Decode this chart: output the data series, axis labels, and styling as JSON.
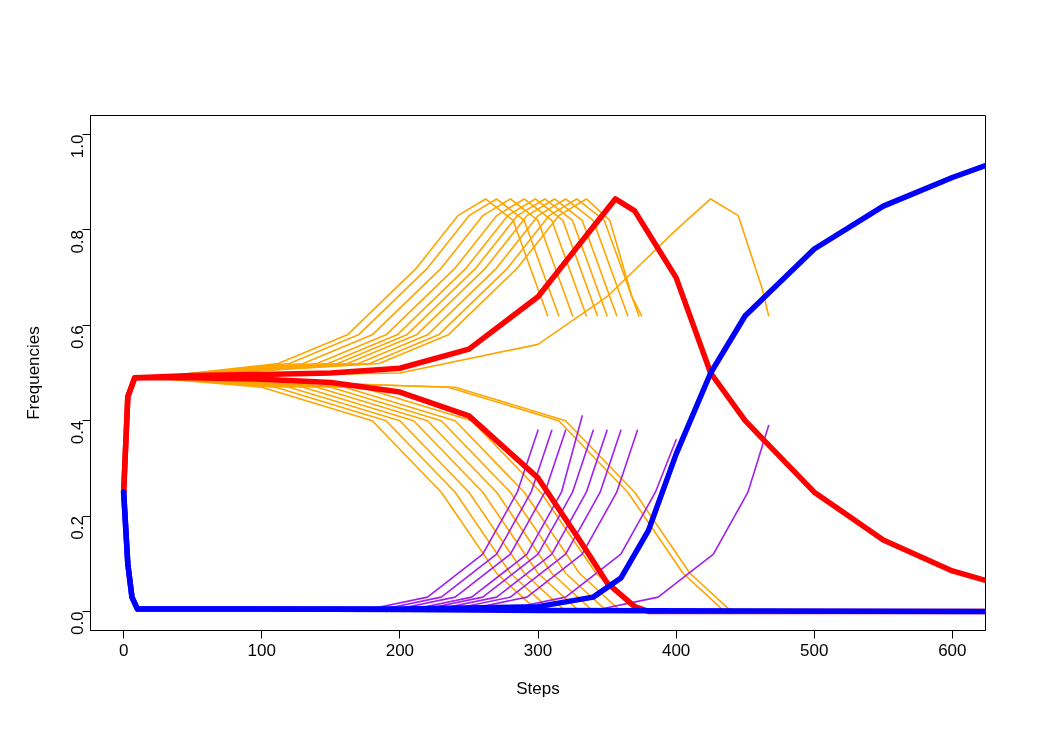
{
  "chart_data": {
    "type": "line",
    "xlabel": "Steps",
    "ylabel": "Frequencies",
    "xlim": [
      -24,
      624
    ],
    "ylim": [
      -0.04,
      1.04
    ],
    "xticks": [
      0,
      100,
      200,
      300,
      400,
      500,
      600
    ],
    "yticks": [
      {
        "value": 0,
        "label": "0.0"
      },
      {
        "value": 0.2,
        "label": "0.2"
      },
      {
        "value": 0.4,
        "label": "0.4"
      },
      {
        "value": 0.6,
        "label": "0.6"
      },
      {
        "value": 0.8,
        "label": "0.8"
      },
      {
        "value": 1,
        "label": "1.0"
      }
    ],
    "marker": "none",
    "line_style": "solid",
    "series": [
      {
        "color": "#ffa500",
        "x": [
          20,
          112,
          162,
          212,
          242,
          262,
          282,
          302,
          307
        ],
        "values": [
          0.49,
          0.52,
          0.58,
          0.72,
          0.83,
          0.865,
          0.82,
          0.66,
          0.62
        ]
      },
      {
        "color": "#ffa500",
        "x": [
          20,
          120,
          170,
          220,
          250,
          270,
          290,
          310,
          315
        ],
        "values": [
          0.49,
          0.52,
          0.58,
          0.72,
          0.83,
          0.865,
          0.82,
          0.66,
          0.62
        ]
      },
      {
        "color": "#ffa500",
        "x": [
          20,
          130,
          180,
          230,
          260,
          280,
          300,
          320,
          325
        ],
        "values": [
          0.49,
          0.52,
          0.58,
          0.72,
          0.83,
          0.865,
          0.82,
          0.66,
          0.62
        ]
      },
      {
        "color": "#ffa500",
        "x": [
          20,
          140,
          190,
          240,
          270,
          290,
          310,
          330,
          335
        ],
        "values": [
          0.49,
          0.52,
          0.58,
          0.72,
          0.83,
          0.865,
          0.82,
          0.66,
          0.62
        ]
      },
      {
        "color": "#ffa500",
        "x": [
          20,
          148,
          198,
          248,
          278,
          298,
          318,
          338,
          343
        ],
        "values": [
          0.49,
          0.52,
          0.58,
          0.72,
          0.83,
          0.865,
          0.82,
          0.66,
          0.62
        ]
      },
      {
        "color": "#ffa500",
        "x": [
          20,
          155,
          205,
          255,
          285,
          305,
          325,
          345,
          350
        ],
        "values": [
          0.49,
          0.52,
          0.58,
          0.72,
          0.83,
          0.865,
          0.82,
          0.66,
          0.62
        ]
      },
      {
        "color": "#ffa500",
        "x": [
          20,
          162,
          212,
          262,
          292,
          312,
          332,
          352,
          357
        ],
        "values": [
          0.49,
          0.52,
          0.58,
          0.72,
          0.83,
          0.865,
          0.82,
          0.66,
          0.62
        ]
      },
      {
        "color": "#ffa500",
        "x": [
          20,
          170,
          220,
          270,
          300,
          320,
          340,
          360,
          365
        ],
        "values": [
          0.49,
          0.52,
          0.58,
          0.72,
          0.83,
          0.865,
          0.82,
          0.66,
          0.62
        ]
      },
      {
        "color": "#ffa500",
        "x": [
          20,
          178,
          228,
          278,
          308,
          328,
          348,
          368,
          373
        ],
        "values": [
          0.49,
          0.52,
          0.58,
          0.72,
          0.83,
          0.865,
          0.82,
          0.66,
          0.62
        ]
      },
      {
        "color": "#ffa500",
        "x": [
          20,
          185,
          235,
          285,
          315,
          335,
          352,
          368,
          375
        ],
        "values": [
          0.49,
          0.52,
          0.58,
          0.72,
          0.83,
          0.865,
          0.82,
          0.66,
          0.62
        ]
      },
      {
        "color": "#ffa500",
        "x": [
          20,
          200,
          300,
          350,
          400,
          425,
          445,
          462,
          467
        ],
        "values": [
          0.49,
          0.5,
          0.56,
          0.66,
          0.8,
          0.865,
          0.83,
          0.68,
          0.62
        ]
      },
      {
        "color": "#ffa500",
        "x": [
          20,
          100,
          180,
          230,
          270,
          300
        ],
        "values": [
          0.49,
          0.47,
          0.4,
          0.25,
          0.08,
          0.0
        ]
      },
      {
        "color": "#ffa500",
        "x": [
          20,
          110,
          190,
          240,
          280,
          310
        ],
        "values": [
          0.49,
          0.47,
          0.4,
          0.25,
          0.08,
          0.0
        ]
      },
      {
        "color": "#ffa500",
        "x": [
          20,
          120,
          200,
          250,
          290,
          320
        ],
        "values": [
          0.49,
          0.47,
          0.4,
          0.25,
          0.08,
          0.0
        ]
      },
      {
        "color": "#ffa500",
        "x": [
          20,
          130,
          210,
          260,
          300,
          330
        ],
        "values": [
          0.49,
          0.47,
          0.4,
          0.25,
          0.08,
          0.0
        ]
      },
      {
        "color": "#ffa500",
        "x": [
          20,
          140,
          220,
          270,
          310,
          340
        ],
        "values": [
          0.49,
          0.47,
          0.4,
          0.25,
          0.08,
          0.0
        ]
      },
      {
        "color": "#ffa500",
        "x": [
          20,
          150,
          230,
          280,
          320,
          350
        ],
        "values": [
          0.49,
          0.47,
          0.4,
          0.25,
          0.08,
          0.0
        ]
      },
      {
        "color": "#ffa500",
        "x": [
          20,
          160,
          240,
          290,
          330,
          360
        ],
        "values": [
          0.49,
          0.47,
          0.4,
          0.25,
          0.08,
          0.0
        ]
      },
      {
        "color": "#ffa500",
        "x": [
          20,
          172,
          252,
          302,
          342,
          372
        ],
        "values": [
          0.49,
          0.47,
          0.4,
          0.25,
          0.08,
          0.0
        ]
      },
      {
        "color": "#ffa500",
        "x": [
          20,
          235,
          315,
          365,
          405,
          435
        ],
        "values": [
          0.49,
          0.47,
          0.4,
          0.25,
          0.08,
          0.0
        ]
      },
      {
        "color": "#ffa500",
        "x": [
          20,
          240,
          320,
          370,
          410,
          440
        ],
        "values": [
          0.49,
          0.47,
          0.4,
          0.25,
          0.08,
          0.0
        ]
      },
      {
        "color": "#a020f0",
        "x": [
          170,
          220,
          260,
          285,
          300
        ],
        "values": [
          0.0,
          0.03,
          0.12,
          0.25,
          0.38
        ]
      },
      {
        "color": "#a020f0",
        "x": [
          180,
          230,
          270,
          295,
          310
        ],
        "values": [
          0.0,
          0.03,
          0.12,
          0.25,
          0.38
        ]
      },
      {
        "color": "#a020f0",
        "x": [
          190,
          240,
          280,
          305,
          320
        ],
        "values": [
          0.0,
          0.03,
          0.12,
          0.25,
          0.38
        ]
      },
      {
        "color": "#a020f0",
        "x": [
          202,
          252,
          292,
          317,
          332
        ],
        "values": [
          0.0,
          0.03,
          0.12,
          0.25,
          0.41
        ]
      },
      {
        "color": "#a020f0",
        "x": [
          210,
          260,
          300,
          325,
          340
        ],
        "values": [
          0.0,
          0.03,
          0.12,
          0.25,
          0.38
        ]
      },
      {
        "color": "#a020f0",
        "x": [
          220,
          270,
          310,
          335,
          350
        ],
        "values": [
          0.0,
          0.03,
          0.12,
          0.25,
          0.38
        ]
      },
      {
        "color": "#a020f0",
        "x": [
          230,
          280,
          320,
          345,
          360
        ],
        "values": [
          0.0,
          0.03,
          0.12,
          0.25,
          0.38
        ]
      },
      {
        "color": "#a020f0",
        "x": [
          242,
          292,
          332,
          357,
          372
        ],
        "values": [
          0.0,
          0.03,
          0.12,
          0.25,
          0.38
        ]
      },
      {
        "color": "#a020f0",
        "x": [
          270,
          320,
          360,
          385,
          400
        ],
        "values": [
          0.0,
          0.03,
          0.12,
          0.25,
          0.36
        ]
      },
      {
        "color": "#a020f0",
        "x": [
          337,
          387,
          427,
          452,
          467
        ],
        "values": [
          0.0,
          0.03,
          0.12,
          0.25,
          0.39
        ]
      },
      {
        "color": "#ff0000",
        "x": [
          0,
          3,
          8,
          50,
          100,
          150,
          200,
          250,
          300,
          330,
          356,
          370,
          400,
          425,
          450,
          500,
          550,
          600,
          624
        ],
        "values": [
          0.25,
          0.45,
          0.49,
          0.495,
          0.497,
          0.5,
          0.51,
          0.55,
          0.66,
          0.77,
          0.865,
          0.84,
          0.7,
          0.5,
          0.4,
          0.25,
          0.15,
          0.085,
          0.065
        ]
      },
      {
        "color": "#ff0000",
        "x": [
          0,
          3,
          8,
          50,
          100,
          150,
          200,
          250,
          300,
          330,
          350,
          370,
          380,
          624
        ],
        "values": [
          0.25,
          0.45,
          0.49,
          0.49,
          0.487,
          0.48,
          0.46,
          0.41,
          0.28,
          0.15,
          0.06,
          0.01,
          0.0,
          0.0
        ]
      },
      {
        "color": "#0000ff",
        "x": [
          0,
          3,
          6,
          10,
          100,
          200,
          300,
          624
        ],
        "values": [
          0.25,
          0.1,
          0.03,
          0.005,
          0.005,
          0.004,
          0.002,
          0.0
        ]
      },
      {
        "color": "#0000ff",
        "x": [
          0,
          3,
          6,
          10,
          100,
          200,
          300,
          340,
          360,
          380,
          400,
          425,
          450,
          500,
          550,
          600,
          624
        ],
        "values": [
          0.25,
          0.1,
          0.03,
          0.005,
          0.005,
          0.005,
          0.01,
          0.03,
          0.07,
          0.17,
          0.33,
          0.5,
          0.62,
          0.76,
          0.85,
          0.91,
          0.935
        ]
      }
    ]
  }
}
